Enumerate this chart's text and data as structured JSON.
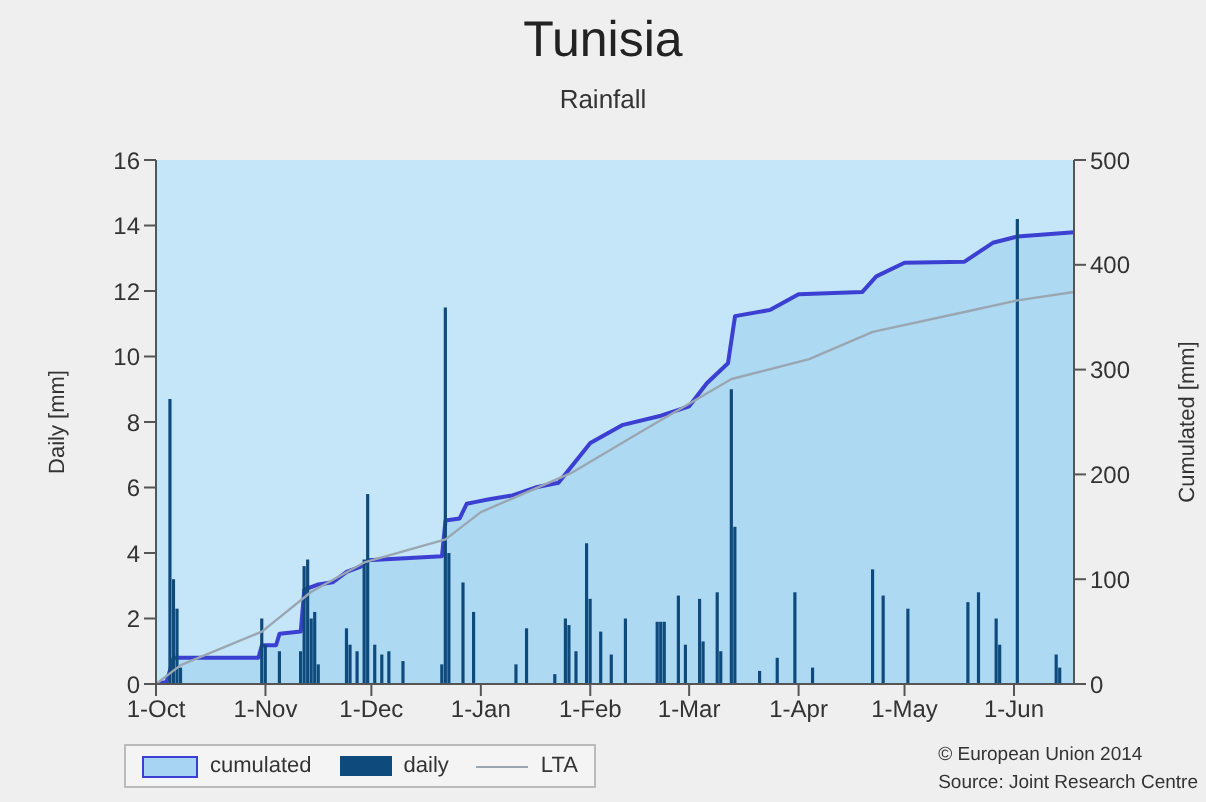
{
  "chart_data": {
    "type": "bar",
    "title": "Tunisia",
    "subtitle": "Rainfall",
    "ylabel": "Daily [mm]",
    "y2label": "Cumulated [mm]",
    "xlim": [
      "2013-10-01",
      "2014-06-18"
    ],
    "xticks": [
      {
        "value": "2013-10-01",
        "label": "1-Oct"
      },
      {
        "value": "2013-11-01",
        "label": "1-Nov"
      },
      {
        "value": "2013-12-01",
        "label": "1-Dec"
      },
      {
        "value": "2014-01-01",
        "label": "1-Jan"
      },
      {
        "value": "2014-02-01",
        "label": "1-Feb"
      },
      {
        "value": "2014-03-01",
        "label": "1-Mar"
      },
      {
        "value": "2014-04-01",
        "label": "1-Apr"
      },
      {
        "value": "2014-05-01",
        "label": "1-May"
      },
      {
        "value": "2014-06-01",
        "label": "1-Jun"
      }
    ],
    "ylim": [
      0,
      16
    ],
    "yticks": [
      0,
      2,
      4,
      6,
      8,
      10,
      12,
      14,
      16
    ],
    "y2lim": [
      0,
      500
    ],
    "y2ticks": [
      0,
      100,
      200,
      300,
      400,
      500
    ],
    "legend": "bottom left",
    "series": [
      {
        "name": "cumulated",
        "type": "area",
        "axis": "y2",
        "color": "#3b3fd2",
        "x": [
          "2013-10-01",
          "2013-10-04",
          "2013-10-06",
          "2013-10-30",
          "2013-10-31",
          "2013-11-04",
          "2013-11-05",
          "2013-11-11",
          "2013-11-12",
          "2013-11-16",
          "2013-11-20",
          "2013-11-24",
          "2013-11-28",
          "2013-11-30",
          "2013-12-21",
          "2013-12-22",
          "2013-12-26",
          "2013-12-28",
          "2013-12-31",
          "2014-01-03",
          "2014-01-10",
          "2014-01-17",
          "2014-01-23",
          "2014-02-01",
          "2014-02-10",
          "2014-02-21",
          "2014-03-01",
          "2014-03-06",
          "2014-03-12",
          "2014-03-14",
          "2014-03-24",
          "2014-04-01",
          "2014-04-19",
          "2014-04-23",
          "2014-05-01",
          "2014-05-18",
          "2014-05-26",
          "2014-06-02",
          "2014-06-18"
        ],
        "values": [
          0,
          2,
          25,
          25,
          37,
          37,
          48,
          50,
          90,
          95,
          97,
          107,
          112,
          118,
          122,
          156,
          158,
          172,
          174,
          176,
          180,
          188,
          192,
          230,
          247,
          256,
          265,
          287,
          306,
          351,
          357,
          372,
          374,
          389,
          402,
          403,
          421,
          427,
          431
        ]
      },
      {
        "name": "daily",
        "color": "#0e4a7c",
        "x": [
          "2013-10-05",
          "2013-10-06",
          "2013-10-07",
          "2013-10-08",
          "2013-10-31",
          "2013-11-01",
          "2013-11-05",
          "2013-11-11",
          "2013-11-12",
          "2013-11-13",
          "2013-11-14",
          "2013-11-15",
          "2013-11-16",
          "2013-11-24",
          "2013-11-25",
          "2013-11-27",
          "2013-11-29",
          "2013-11-30",
          "2013-12-02",
          "2013-12-04",
          "2013-12-06",
          "2013-12-10",
          "2013-12-21",
          "2013-12-22",
          "2013-12-23",
          "2013-12-27",
          "2013-12-30",
          "2014-01-11",
          "2014-01-14",
          "2014-01-22",
          "2014-01-25",
          "2014-01-26",
          "2014-01-28",
          "2014-01-31",
          "2014-02-01",
          "2014-02-04",
          "2014-02-07",
          "2014-02-11",
          "2014-02-20",
          "2014-02-21",
          "2014-02-22",
          "2014-02-26",
          "2014-02-28",
          "2014-03-04",
          "2014-03-05",
          "2014-03-09",
          "2014-03-10",
          "2014-03-13",
          "2014-03-14",
          "2014-03-21",
          "2014-03-26",
          "2014-03-31",
          "2014-04-05",
          "2014-04-22",
          "2014-04-25",
          "2014-05-02",
          "2014-05-19",
          "2014-05-22",
          "2014-05-27",
          "2014-05-28",
          "2014-06-02",
          "2014-06-13",
          "2014-06-14"
        ],
        "values": [
          8.7,
          3.2,
          2.3,
          0.5,
          2.0,
          1.2,
          1.0,
          1.0,
          3.6,
          3.8,
          2.0,
          2.2,
          0.6,
          1.7,
          1.2,
          1.0,
          3.8,
          5.8,
          1.2,
          0.9,
          1.0,
          0.7,
          0.6,
          11.5,
          4.0,
          3.1,
          2.2,
          0.6,
          1.7,
          0.3,
          2.0,
          1.8,
          1.0,
          4.3,
          2.6,
          1.6,
          0.9,
          2.0,
          1.9,
          1.9,
          1.9,
          2.7,
          1.2,
          2.6,
          1.3,
          2.8,
          1.0,
          9.0,
          4.8,
          0.4,
          0.8,
          2.8,
          0.5,
          3.5,
          2.7,
          2.3,
          2.5,
          2.8,
          2.0,
          1.2,
          14.2,
          0.9,
          0.5
        ]
      },
      {
        "name": "LTA",
        "type": "line",
        "axis": "y2",
        "color": "#9aa7b2",
        "x": [
          "2013-10-01",
          "2013-10-08",
          "2013-10-31",
          "2013-11-14",
          "2013-11-29",
          "2013-12-22",
          "2014-01-01",
          "2014-01-27",
          "2014-02-15",
          "2014-03-13",
          "2014-04-04",
          "2014-04-22",
          "2014-05-18",
          "2014-06-02",
          "2014-06-18"
        ],
        "values": [
          0,
          18,
          50,
          88,
          116,
          138,
          164,
          202,
          240,
          291,
          310,
          336,
          355,
          366,
          374
        ]
      }
    ],
    "annotations": [
      "© European Union 2014",
      "Source: Joint Research Centre"
    ]
  }
}
